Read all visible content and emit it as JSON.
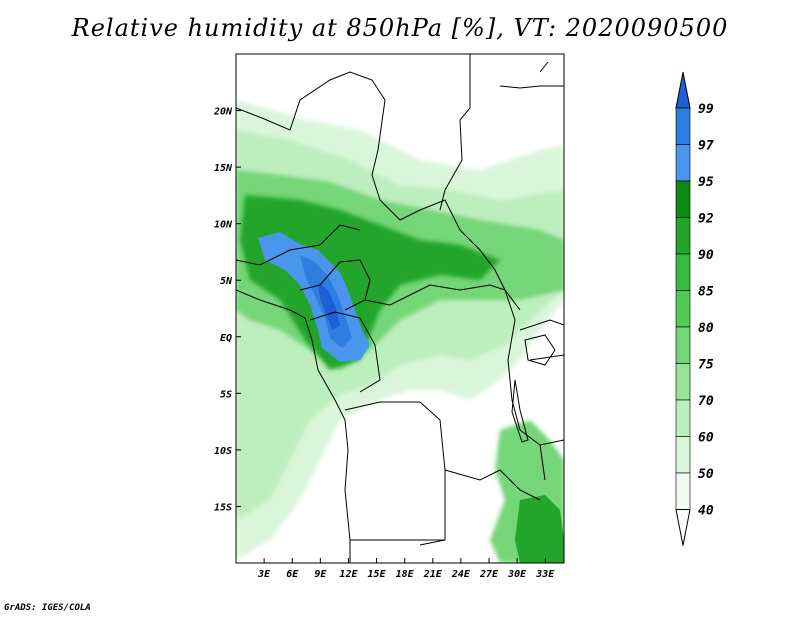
{
  "title": "Relative humidity at 850hPa [%], VT: 2020090500",
  "footer": "GrADS: IGES/COLA",
  "map": {
    "lon_range": [
      0,
      35
    ],
    "lat_range": [
      -20,
      25
    ],
    "lat_ticks": [
      {
        "value": 20,
        "label": "20N"
      },
      {
        "value": 15,
        "label": "15N"
      },
      {
        "value": 10,
        "label": "10N"
      },
      {
        "value": 5,
        "label": "5N"
      },
      {
        "value": 0,
        "label": "EQ"
      },
      {
        "value": -5,
        "label": "5S"
      },
      {
        "value": -10,
        "label": "10S"
      },
      {
        "value": -15,
        "label": "15S"
      }
    ],
    "lon_ticks": [
      {
        "value": 3,
        "label": "3E"
      },
      {
        "value": 6,
        "label": "6E"
      },
      {
        "value": 9,
        "label": "9E"
      },
      {
        "value": 12,
        "label": "12E"
      },
      {
        "value": 15,
        "label": "15E"
      },
      {
        "value": 18,
        "label": "18E"
      },
      {
        "value": 21,
        "label": "21E"
      },
      {
        "value": 24,
        "label": "24E"
      },
      {
        "value": 27,
        "label": "27E"
      },
      {
        "value": 30,
        "label": "30E"
      },
      {
        "value": 33,
        "label": "33E"
      }
    ]
  },
  "colorbar": {
    "levels": [
      "99",
      "97",
      "95",
      "92",
      "90",
      "85",
      "80",
      "75",
      "70",
      "60",
      "50",
      "40"
    ],
    "colors": [
      "#1f5fd6",
      "#2e7ee0",
      "#4a96ec",
      "#0e8a14",
      "#22a52a",
      "#3ab83f",
      "#52c857",
      "#74d677",
      "#98e29a",
      "#bdeebd",
      "#daf6da",
      "#eefbee",
      "#ffffff"
    ]
  },
  "colors": {
    "land_low": "#eefbee",
    "green_light": "#bdeebd",
    "green_mid": "#74d677",
    "green_dark": "#22a52a",
    "blue": "#2e7ee0",
    "blue_dark": "#1f5fd6",
    "border": "#000000"
  }
}
